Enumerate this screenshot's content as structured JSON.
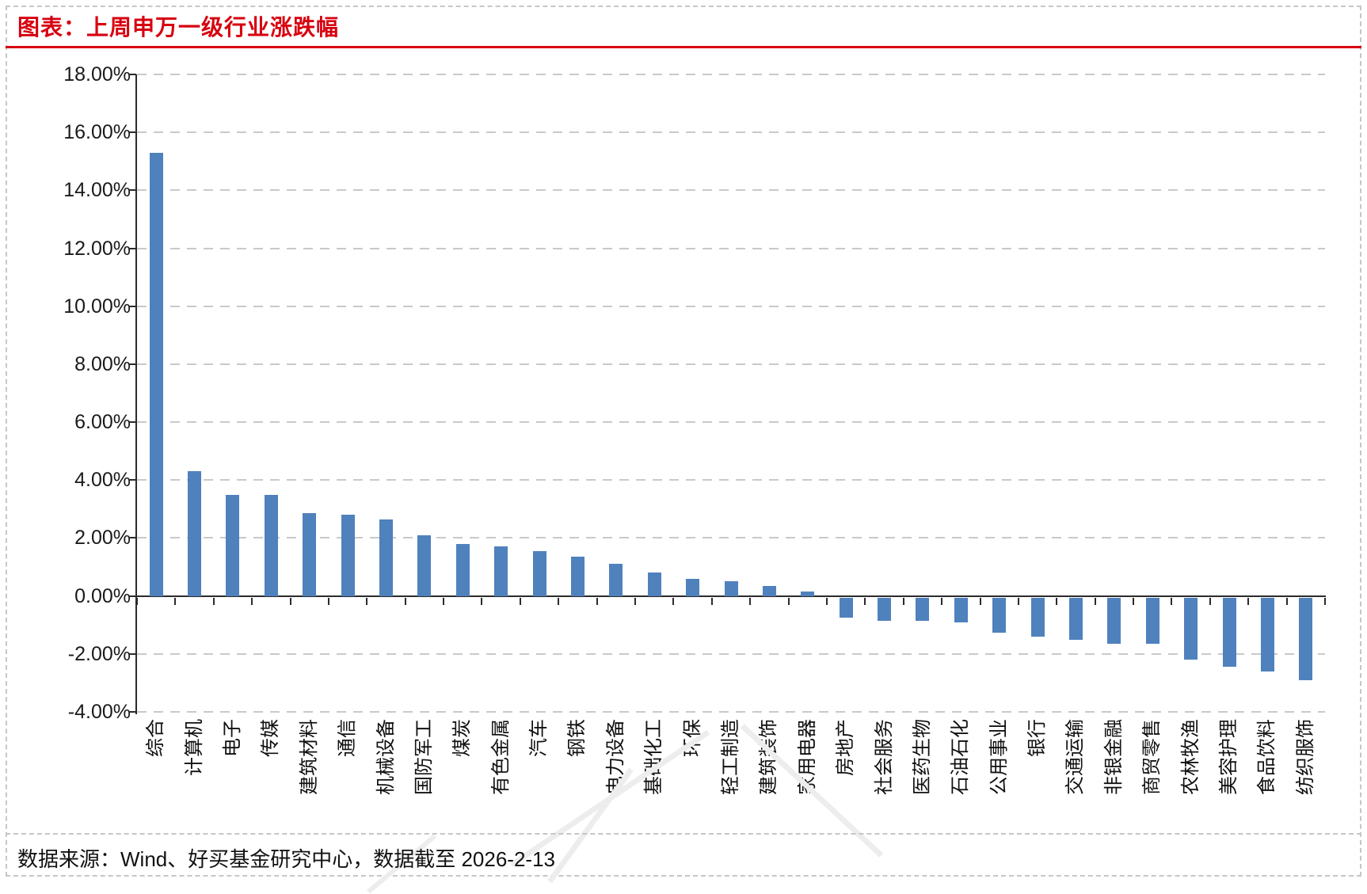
{
  "header": {
    "title": "图表：上周申万一级行业涨跌幅"
  },
  "footer": {
    "source": "数据来源：Wind、好买基金研究中心，数据截至 2026-2-13"
  },
  "colors": {
    "title_red": "#d7000f",
    "bar_blue": "#4f81bd",
    "gridline_gray": "#c9c9c9",
    "axis_black": "#2b2b2b"
  },
  "chart_data": {
    "type": "bar",
    "title": "上周申万一级行业涨跌幅",
    "categories": [
      "综合",
      "计算机",
      "电子",
      "传媒",
      "建筑材料",
      "通信",
      "机械设备",
      "国防军工",
      "煤炭",
      "有色金属",
      "汽车",
      "钢铁",
      "电力设备",
      "基础化工",
      "环保",
      "轻工制造",
      "建筑装饰",
      "家用电器",
      "房地产",
      "社会服务",
      "医药生物",
      "石油石化",
      "公用事业",
      "银行",
      "交通运输",
      "非银金融",
      "商贸零售",
      "农林牧渔",
      "美容护理",
      "食品饮料",
      "纺织服饰"
    ],
    "values": [
      15.3,
      4.3,
      3.5,
      3.5,
      2.85,
      2.8,
      2.65,
      2.1,
      1.8,
      1.7,
      1.55,
      1.35,
      1.1,
      0.8,
      0.6,
      0.5,
      0.35,
      0.15,
      -0.7,
      -0.8,
      -0.8,
      -0.85,
      -1.2,
      -1.35,
      -1.45,
      -1.6,
      -1.6,
      -2.15,
      -2.4,
      -2.55,
      -2.85
    ],
    "ylabel": "",
    "xlabel": "",
    "ylim": [
      -4,
      18
    ],
    "ytick_step": 2,
    "ytick_format": "0.00%",
    "grid": "horizontal-dashed",
    "legend": "none",
    "bar_color": "#4f81bd"
  }
}
